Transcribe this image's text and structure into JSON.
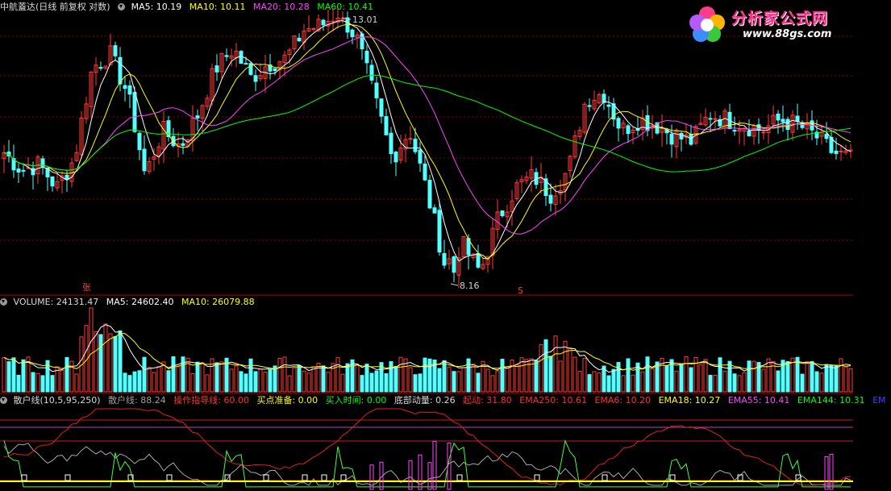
{
  "header": {
    "stock_label": "中航蓋达(日线 前复权 对数)",
    "ma5": "MA5: 10.19",
    "ma10": "MA10: 10.11",
    "ma20": "MA20: 10.28",
    "ma60": "MA60: 10.41"
  },
  "price_panel": {
    "high_label": "13.01",
    "low_label": "8.16",
    "zhang_mark": "张",
    "s_mark": "S"
  },
  "volume_panel": {
    "volume": "VOLUME: 24131.47",
    "ma5": "MA5: 24602.40",
    "ma10": "MA10: 26079.88"
  },
  "indicator_panel": {
    "name": "散户线(10,5,95,250)",
    "sanhu": "散户线: 88.24",
    "caozuo": "操作指导线: 60.00",
    "maidian": "买点准备: 0.00",
    "mairu": "买入时间: 0.00",
    "dibu": "底部动量: 0.26",
    "qidong": "起动: 31.80",
    "ema250": "EMA250: 10.61",
    "ema6": "EMA6: 10.20",
    "ema18": "EMA18: 10.27",
    "ema55": "EMA55: 10.41",
    "ema144": "EMA144: 10.31",
    "more": "EM"
  },
  "logo": {
    "title": "分析家公式网",
    "url": "www.88gs.com"
  },
  "colors": {
    "up": "#ff3a3a",
    "down": "#54ffff",
    "ma5": "#ffffff",
    "ma10": "#ffff00",
    "ma20": "#ff44ff",
    "ma60": "#00ff00",
    "grid": "#8b0000"
  },
  "chart_data": {
    "type": "candlestick",
    "price_range": [
      8.16,
      13.01
    ],
    "key_points": [
      {
        "label": "high",
        "value": 13.01
      },
      {
        "label": "low",
        "value": 8.16
      }
    ],
    "last_values": {
      "MA5": 10.19,
      "MA10": 10.11,
      "MA20": 10.28,
      "MA60": 10.41,
      "VOLUME": 24131.47,
      "VOL_MA5": 24602.4,
      "VOL_MA10": 26079.88
    },
    "close_path": [
      10.2,
      9.9,
      10.0,
      9.6,
      10.1,
      11.8,
      12.1,
      11.3,
      9.8,
      10.6,
      10.3,
      10.9,
      11.8,
      12.2,
      11.6,
      11.9,
      12.0,
      12.6,
      12.7,
      13.0,
      12.4,
      11.2,
      10.1,
      10.6,
      9.5,
      8.4,
      8.7,
      8.3,
      9.1,
      9.6,
      9.8,
      9.5,
      9.9,
      11.2,
      11.3,
      10.6,
      10.8,
      10.7,
      10.5,
      10.4,
      10.9,
      10.8,
      10.7,
      10.6,
      10.8,
      10.7,
      10.5,
      10.2,
      10.1
    ]
  }
}
